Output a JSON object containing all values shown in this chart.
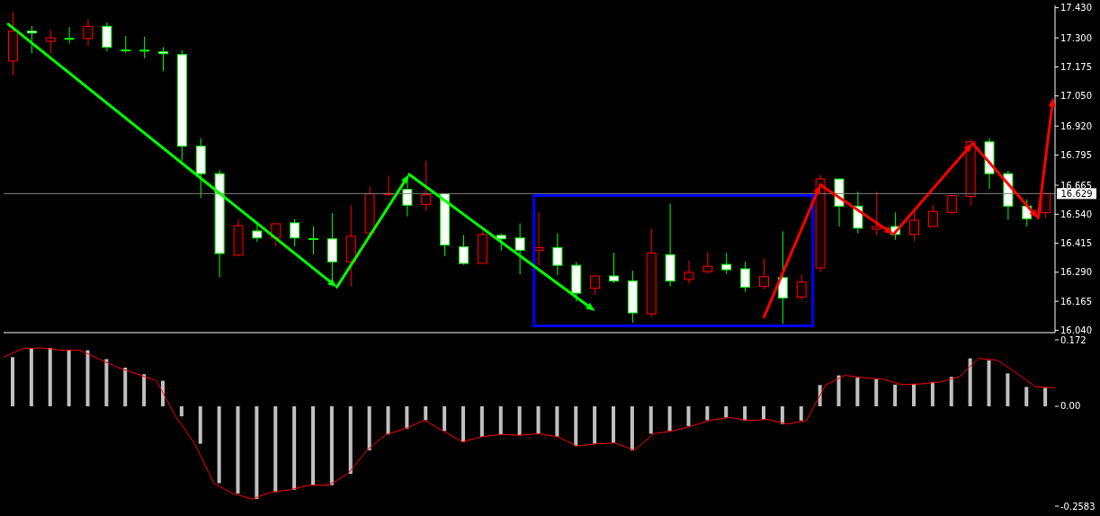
{
  "chart_data": [
    {
      "type": "candlestick",
      "categories": [
        null,
        null,
        null,
        null,
        null,
        null,
        null,
        null,
        null,
        null,
        null,
        null,
        null,
        null,
        null,
        null,
        null,
        null,
        null,
        null,
        null,
        null,
        null,
        null,
        null,
        null,
        null,
        null,
        null,
        null,
        null,
        null,
        null,
        null,
        null,
        null,
        null,
        null,
        null,
        null,
        null,
        null,
        null,
        null,
        null,
        null,
        null,
        null,
        null,
        null,
        null,
        null,
        null,
        null,
        null,
        null
      ],
      "ohlc": [
        [
          17.2,
          17.41,
          17.14,
          17.33
        ],
        [
          17.329,
          17.351,
          17.234,
          17.321
        ],
        [
          17.285,
          17.336,
          17.232,
          17.3
        ],
        [
          17.298,
          17.346,
          17.276,
          17.298
        ],
        [
          17.297,
          17.381,
          17.265,
          17.35
        ],
        [
          17.35,
          17.366,
          17.242,
          17.259
        ],
        [
          17.248,
          17.309,
          17.234,
          17.248
        ],
        [
          17.247,
          17.305,
          17.212,
          17.247
        ],
        [
          17.24,
          17.26,
          17.156,
          17.232
        ],
        [
          17.228,
          17.247,
          16.77,
          16.833
        ],
        [
          16.833,
          16.867,
          16.611,
          16.715
        ],
        [
          16.715,
          16.73,
          16.269,
          16.371
        ],
        [
          16.364,
          16.519,
          16.358,
          16.491
        ],
        [
          16.468,
          16.497,
          16.421,
          16.438
        ],
        [
          16.438,
          16.499,
          16.402,
          16.499
        ],
        [
          16.503,
          16.519,
          16.402,
          16.438
        ],
        [
          16.435,
          16.488,
          16.367,
          16.435
        ],
        [
          16.434,
          16.545,
          16.257,
          16.335
        ],
        [
          16.335,
          16.58,
          16.229,
          16.445
        ],
        [
          16.459,
          16.66,
          16.455,
          16.628
        ],
        [
          16.624,
          16.707,
          16.62,
          16.629
        ],
        [
          16.647,
          16.675,
          16.531,
          16.579
        ],
        [
          16.582,
          16.77,
          16.554,
          16.624
        ],
        [
          16.628,
          16.63,
          16.36,
          16.407
        ],
        [
          16.4,
          16.45,
          16.322,
          16.328
        ],
        [
          16.328,
          16.469,
          16.328,
          16.453
        ],
        [
          16.449,
          16.457,
          16.383,
          16.434
        ],
        [
          16.438,
          16.5,
          16.281,
          16.385
        ],
        [
          16.385,
          16.548,
          16.32,
          16.396
        ],
        [
          16.396,
          16.458,
          16.278,
          16.32
        ],
        [
          16.32,
          16.335,
          16.164,
          16.2
        ],
        [
          16.221,
          16.274,
          16.193,
          16.274
        ],
        [
          16.274,
          16.374,
          16.244,
          16.252
        ],
        [
          16.252,
          16.297,
          16.072,
          16.115
        ],
        [
          16.111,
          16.477,
          16.1,
          16.373
        ],
        [
          16.366,
          16.586,
          16.229,
          16.252
        ],
        [
          16.259,
          16.34,
          16.24,
          16.29
        ],
        [
          16.293,
          16.378,
          16.284,
          16.316
        ],
        [
          16.324,
          16.374,
          16.282,
          16.301
        ],
        [
          16.305,
          16.336,
          16.206,
          16.225
        ],
        [
          16.229,
          16.349,
          16.216,
          16.271
        ],
        [
          16.267,
          16.466,
          16.068,
          16.179
        ],
        [
          16.183,
          16.281,
          16.172,
          16.248
        ],
        [
          16.309,
          16.709,
          16.292,
          16.692
        ],
        [
          16.692,
          16.692,
          16.487,
          16.575
        ],
        [
          16.575,
          16.637,
          16.457,
          16.48
        ],
        [
          16.476,
          16.637,
          16.449,
          16.487
        ],
        [
          16.487,
          16.548,
          16.43,
          16.453
        ],
        [
          16.453,
          16.548,
          16.423,
          16.514
        ],
        [
          16.487,
          16.578,
          16.487,
          16.552
        ],
        [
          16.548,
          16.62,
          16.538,
          16.62
        ],
        [
          16.617,
          16.865,
          16.577,
          16.852
        ],
        [
          16.852,
          16.868,
          16.649,
          16.715
        ],
        [
          16.715,
          16.728,
          16.516,
          16.575
        ],
        [
          16.575,
          16.605,
          16.487,
          16.521
        ],
        [
          16.547,
          16.632,
          16.525,
          16.629
        ]
      ],
      "colors": [
        "#ff0000",
        "#00ff00",
        "#ff0000",
        "#00ff00",
        "#ff0000",
        "#00ff00",
        "#00ff00",
        "#00ff00",
        "#00ff00",
        "#00ff00",
        "#00ff00",
        "#00ff00",
        "#ff0000",
        "#00ff00",
        "#ff0000",
        "#00ff00",
        "#00ff00",
        "#00ff00",
        "#ff0000",
        "#ff0000",
        "#ff0000",
        "#00ff00",
        "#ff0000",
        "#00ff00",
        "#00ff00",
        "#ff0000",
        "#00ff00",
        "#00ff00",
        "#ff0000",
        "#00ff00",
        "#00ff00",
        "#ff0000",
        "#00ff00",
        "#00ff00",
        "#ff0000",
        "#00ff00",
        "#ff0000",
        "#ff0000",
        "#00ff00",
        "#00ff00",
        "#ff0000",
        "#00ff00",
        "#ff0000",
        "#ff0000",
        "#00ff00",
        "#00ff00",
        "#ff0000",
        "#00ff00",
        "#ff0000",
        "#ff0000",
        "#ff0000",
        "#ff0000",
        "#00ff00",
        "#00ff00",
        "#00ff00",
        "#ff0000"
      ],
      "ylim": [
        16.03,
        17.44
      ],
      "yticks": [
        {
          "value": 17.43,
          "label": "17.430"
        },
        {
          "value": 17.3,
          "label": "17.300"
        },
        17.175,
        {
          "value": 17.05,
          "label": "17.050"
        },
        {
          "value": 16.92,
          "label": "16.920"
        },
        16.795,
        16.665,
        {
          "value": 16.54,
          "label": "16.540"
        },
        16.415,
        {
          "value": 16.29,
          "label": "16.290"
        },
        16.165,
        {
          "value": 16.04,
          "label": "16.040"
        }
      ],
      "ref_lines": [
        {
          "axis": "y",
          "value": 16.629,
          "label": "16.629",
          "color": "#808080"
        }
      ]
    },
    {
      "type": "bar",
      "categories": [
        null,
        null,
        null,
        null,
        null,
        null,
        null,
        null,
        null,
        null,
        null,
        null,
        null,
        null,
        null,
        null,
        null,
        null,
        null,
        null,
        null,
        null,
        null,
        null,
        null,
        null,
        null,
        null,
        null,
        null,
        null,
        null,
        null,
        null,
        null,
        null,
        null,
        null,
        null,
        null,
        null,
        null,
        null,
        null,
        null,
        null,
        null,
        null,
        null,
        null,
        null,
        null,
        null,
        null,
        null,
        null
      ],
      "color": "#c0c0c0",
      "values": [
        0.127,
        0.149,
        0.151,
        0.145,
        0.145,
        0.122,
        0.1,
        0.083,
        0.066,
        -0.026,
        -0.097,
        -0.199,
        -0.226,
        -0.24,
        -0.222,
        -0.216,
        -0.204,
        -0.204,
        -0.175,
        -0.114,
        -0.073,
        -0.058,
        -0.036,
        -0.064,
        -0.092,
        -0.079,
        -0.073,
        -0.075,
        -0.071,
        -0.079,
        -0.103,
        -0.097,
        -0.095,
        -0.114,
        -0.071,
        -0.064,
        -0.051,
        -0.036,
        -0.029,
        -0.037,
        -0.034,
        -0.046,
        -0.037,
        0.055,
        0.08,
        0.074,
        0.07,
        0.056,
        0.058,
        0.063,
        0.076,
        0.124,
        0.119,
        0.085,
        0.05,
        0.048
      ],
      "ylim": [
        -0.2583,
        0.172
      ],
      "yticks": [
        0.172,
        {
          "value": 0,
          "label": "0.00"
        },
        -0.2583
      ]
    },
    {
      "type": "line",
      "categories": [
        null,
        null,
        null,
        null,
        null,
        null,
        null,
        null,
        null,
        null,
        null,
        null,
        null,
        null,
        null,
        null,
        null,
        null,
        null,
        null,
        null,
        null,
        null,
        null,
        null,
        null,
        null,
        null,
        null,
        null,
        null,
        null,
        null,
        null,
        null,
        null,
        null,
        null,
        null,
        null,
        null,
        null,
        null,
        null,
        null,
        null,
        null,
        null,
        null,
        null,
        null,
        null,
        null,
        null,
        null,
        null
      ],
      "color": "#ff0000",
      "values": [
        0.127,
        0.149,
        0.151,
        0.145,
        0.145,
        0.122,
        0.1,
        0.083,
        0.066,
        -0.026,
        -0.097,
        -0.199,
        -0.226,
        -0.24,
        -0.222,
        -0.216,
        -0.204,
        -0.204,
        -0.175,
        -0.114,
        -0.073,
        -0.058,
        -0.036,
        -0.064,
        -0.092,
        -0.079,
        -0.073,
        -0.075,
        -0.071,
        -0.079,
        -0.103,
        -0.097,
        -0.095,
        -0.114,
        -0.071,
        -0.064,
        -0.051,
        -0.036,
        -0.029,
        -0.037,
        -0.034,
        -0.046,
        -0.037,
        0.055,
        0.08,
        0.074,
        0.07,
        0.056,
        0.058,
        0.063,
        0.076,
        0.124,
        0.119,
        0.085,
        0.05,
        0.048
      ],
      "ylim": [
        -0.2583,
        0.172
      ],
      "yticks": [
        0.172,
        0,
        -0.2583
      ],
      "tick_labels": false,
      "marker": "none"
    }
  ]
}
